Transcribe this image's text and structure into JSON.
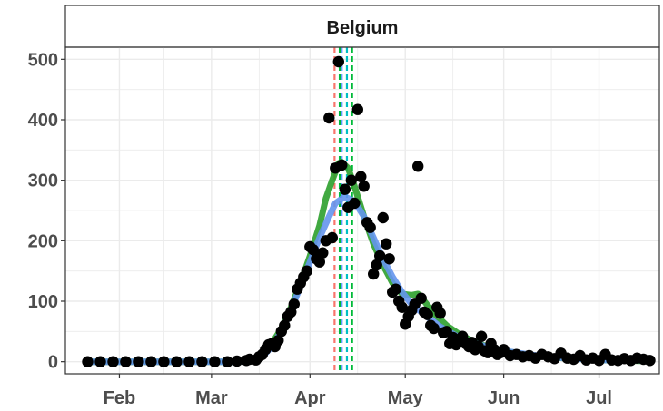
{
  "chart_data": {
    "type": "scatter",
    "title": "",
    "xlabel": "",
    "ylabel": "",
    "panel": {
      "strip_label": "Belgium"
    },
    "x_type": "date",
    "xlim": [
      "2020-01-15",
      "2020-07-20"
    ],
    "ylim": [
      -20,
      520
    ],
    "x_ticks": [
      {
        "date": "2020-02-01",
        "label": "Feb"
      },
      {
        "date": "2020-03-01",
        "label": "Mar"
      },
      {
        "date": "2020-04-01",
        "label": "Apr"
      },
      {
        "date": "2020-05-01",
        "label": "May"
      },
      {
        "date": "2020-06-01",
        "label": "Jun"
      },
      {
        "date": "2020-07-01",
        "label": "Jul"
      }
    ],
    "y_ticks": [
      0,
      100,
      200,
      300,
      400,
      500
    ],
    "grid": true,
    "background": "#ffffff",
    "grid_color": "#ebebeb",
    "series": [
      {
        "kind": "points",
        "color": "#000000",
        "points": [
          [
            "2020-01-22",
            0
          ],
          [
            "2020-01-26",
            0
          ],
          [
            "2020-01-30",
            0
          ],
          [
            "2020-02-03",
            0
          ],
          [
            "2020-02-07",
            0
          ],
          [
            "2020-02-11",
            0
          ],
          [
            "2020-02-15",
            0
          ],
          [
            "2020-02-19",
            0
          ],
          [
            "2020-02-23",
            0
          ],
          [
            "2020-02-27",
            0
          ],
          [
            "2020-03-02",
            0
          ],
          [
            "2020-03-06",
            0
          ],
          [
            "2020-03-09",
            1
          ],
          [
            "2020-03-12",
            2
          ],
          [
            "2020-03-13",
            4
          ],
          [
            "2020-03-15",
            3
          ],
          [
            "2020-03-16",
            8
          ],
          [
            "2020-03-17",
            12
          ],
          [
            "2020-03-18",
            20
          ],
          [
            "2020-03-19",
            28
          ],
          [
            "2020-03-20",
            30
          ],
          [
            "2020-03-21",
            25
          ],
          [
            "2020-03-22",
            35
          ],
          [
            "2020-03-23",
            50
          ],
          [
            "2020-03-24",
            60
          ],
          [
            "2020-03-25",
            75
          ],
          [
            "2020-03-26",
            82
          ],
          [
            "2020-03-27",
            95
          ],
          [
            "2020-03-28",
            120
          ],
          [
            "2020-03-29",
            130
          ],
          [
            "2020-03-30",
            140
          ],
          [
            "2020-03-31",
            150
          ],
          [
            "2020-04-01",
            190
          ],
          [
            "2020-04-02",
            185
          ],
          [
            "2020-04-03",
            170
          ],
          [
            "2020-04-04",
            165
          ],
          [
            "2020-04-05",
            180
          ],
          [
            "2020-04-06",
            200
          ],
          [
            "2020-04-07",
            403
          ],
          [
            "2020-04-08",
            205
          ],
          [
            "2020-04-09",
            320
          ],
          [
            "2020-04-10",
            496
          ],
          [
            "2020-04-11",
            325
          ],
          [
            "2020-04-12",
            285
          ],
          [
            "2020-04-13",
            255
          ],
          [
            "2020-04-14",
            300
          ],
          [
            "2020-04-15",
            262
          ],
          [
            "2020-04-16",
            417
          ],
          [
            "2020-04-17",
            306
          ],
          [
            "2020-04-18",
            290
          ],
          [
            "2020-04-19",
            230
          ],
          [
            "2020-04-20",
            222
          ],
          [
            "2020-04-21",
            145
          ],
          [
            "2020-04-22",
            160
          ],
          [
            "2020-04-23",
            175
          ],
          [
            "2020-04-24",
            238
          ],
          [
            "2020-04-25",
            195
          ],
          [
            "2020-04-26",
            170
          ],
          [
            "2020-04-27",
            115
          ],
          [
            "2020-04-28",
            120
          ],
          [
            "2020-04-29",
            100
          ],
          [
            "2020-04-30",
            90
          ],
          [
            "2020-05-01",
            62
          ],
          [
            "2020-05-02",
            75
          ],
          [
            "2020-05-03",
            85
          ],
          [
            "2020-05-04",
            95
          ],
          [
            "2020-05-05",
            323
          ],
          [
            "2020-05-06",
            105
          ],
          [
            "2020-05-07",
            82
          ],
          [
            "2020-05-08",
            78
          ],
          [
            "2020-05-09",
            60
          ],
          [
            "2020-05-10",
            55
          ],
          [
            "2020-05-11",
            90
          ],
          [
            "2020-05-12",
            80
          ],
          [
            "2020-05-13",
            48
          ],
          [
            "2020-05-14",
            50
          ],
          [
            "2020-05-15",
            30
          ],
          [
            "2020-05-16",
            40
          ],
          [
            "2020-05-17",
            28
          ],
          [
            "2020-05-18",
            35
          ],
          [
            "2020-05-19",
            42
          ],
          [
            "2020-05-20",
            30
          ],
          [
            "2020-05-21",
            25
          ],
          [
            "2020-05-22",
            32
          ],
          [
            "2020-05-23",
            20
          ],
          [
            "2020-05-24",
            25
          ],
          [
            "2020-05-25",
            42
          ],
          [
            "2020-05-26",
            18
          ],
          [
            "2020-05-27",
            15
          ],
          [
            "2020-05-28",
            30
          ],
          [
            "2020-05-29",
            20
          ],
          [
            "2020-05-30",
            12
          ],
          [
            "2020-05-31",
            15
          ],
          [
            "2020-06-01",
            20
          ],
          [
            "2020-06-03",
            10
          ],
          [
            "2020-06-05",
            12
          ],
          [
            "2020-06-07",
            8
          ],
          [
            "2020-06-09",
            10
          ],
          [
            "2020-06-11",
            6
          ],
          [
            "2020-06-13",
            12
          ],
          [
            "2020-06-15",
            8
          ],
          [
            "2020-06-17",
            5
          ],
          [
            "2020-06-19",
            14
          ],
          [
            "2020-06-21",
            6
          ],
          [
            "2020-06-23",
            4
          ],
          [
            "2020-06-25",
            10
          ],
          [
            "2020-06-27",
            3
          ],
          [
            "2020-06-29",
            6
          ],
          [
            "2020-07-01",
            2
          ],
          [
            "2020-07-03",
            12
          ],
          [
            "2020-07-05",
            3
          ],
          [
            "2020-07-07",
            2
          ],
          [
            "2020-07-09",
            5
          ],
          [
            "2020-07-11",
            2
          ],
          [
            "2020-07-13",
            6
          ],
          [
            "2020-07-15",
            4
          ],
          [
            "2020-07-17",
            2
          ]
        ]
      },
      {
        "kind": "line",
        "color": "#2ca02c",
        "opacity": 0.9,
        "points": [
          [
            "2020-01-22",
            0
          ],
          [
            "2020-02-15",
            0
          ],
          [
            "2020-03-10",
            0
          ],
          [
            "2020-03-14",
            2
          ],
          [
            "2020-03-17",
            10
          ],
          [
            "2020-03-20",
            30
          ],
          [
            "2020-03-23",
            55
          ],
          [
            "2020-03-26",
            90
          ],
          [
            "2020-03-29",
            130
          ],
          [
            "2020-04-01",
            175
          ],
          [
            "2020-04-04",
            225
          ],
          [
            "2020-04-06",
            270
          ],
          [
            "2020-04-08",
            300
          ],
          [
            "2020-04-10",
            328
          ],
          [
            "2020-04-11",
            330
          ],
          [
            "2020-04-13",
            320
          ],
          [
            "2020-04-15",
            290
          ],
          [
            "2020-04-18",
            240
          ],
          [
            "2020-04-21",
            195
          ],
          [
            "2020-04-24",
            160
          ],
          [
            "2020-04-27",
            130
          ],
          [
            "2020-04-30",
            112
          ],
          [
            "2020-05-03",
            110
          ],
          [
            "2020-05-05",
            112
          ],
          [
            "2020-05-07",
            100
          ],
          [
            "2020-05-10",
            80
          ],
          [
            "2020-05-14",
            60
          ],
          [
            "2020-05-19",
            42
          ],
          [
            "2020-05-25",
            28
          ],
          [
            "2020-06-01",
            18
          ],
          [
            "2020-06-10",
            10
          ],
          [
            "2020-06-20",
            6
          ],
          [
            "2020-07-01",
            3
          ],
          [
            "2020-07-17",
            1
          ]
        ]
      },
      {
        "kind": "line",
        "color": "#6495ed",
        "opacity": 0.9,
        "points": [
          [
            "2020-01-22",
            0
          ],
          [
            "2020-02-15",
            0
          ],
          [
            "2020-03-10",
            0
          ],
          [
            "2020-03-14",
            2
          ],
          [
            "2020-03-17",
            8
          ],
          [
            "2020-03-20",
            25
          ],
          [
            "2020-03-23",
            50
          ],
          [
            "2020-03-26",
            85
          ],
          [
            "2020-03-29",
            125
          ],
          [
            "2020-04-01",
            165
          ],
          [
            "2020-04-04",
            205
          ],
          [
            "2020-04-07",
            240
          ],
          [
            "2020-04-09",
            262
          ],
          [
            "2020-04-12",
            273
          ],
          [
            "2020-04-15",
            265
          ],
          [
            "2020-04-18",
            240
          ],
          [
            "2020-04-21",
            205
          ],
          [
            "2020-04-24",
            170
          ],
          [
            "2020-04-27",
            140
          ],
          [
            "2020-04-30",
            115
          ],
          [
            "2020-05-03",
            95
          ],
          [
            "2020-05-07",
            78
          ],
          [
            "2020-05-12",
            58
          ],
          [
            "2020-05-18",
            40
          ],
          [
            "2020-05-25",
            27
          ],
          [
            "2020-06-01",
            18
          ],
          [
            "2020-06-10",
            11
          ],
          [
            "2020-06-20",
            6
          ],
          [
            "2020-07-01",
            3
          ],
          [
            "2020-07-17",
            2
          ]
        ]
      }
    ],
    "vlines": [
      {
        "date": "2020-04-10",
        "color": "#f8766d"
      },
      {
        "date": "2020-04-11",
        "color": "#00ba38"
      },
      {
        "date": "2020-04-11",
        "color": "#619cff"
      },
      {
        "date": "2020-04-12",
        "color": "#00bfc4"
      },
      {
        "date": "2020-04-13",
        "color": "#00ba38"
      }
    ]
  }
}
